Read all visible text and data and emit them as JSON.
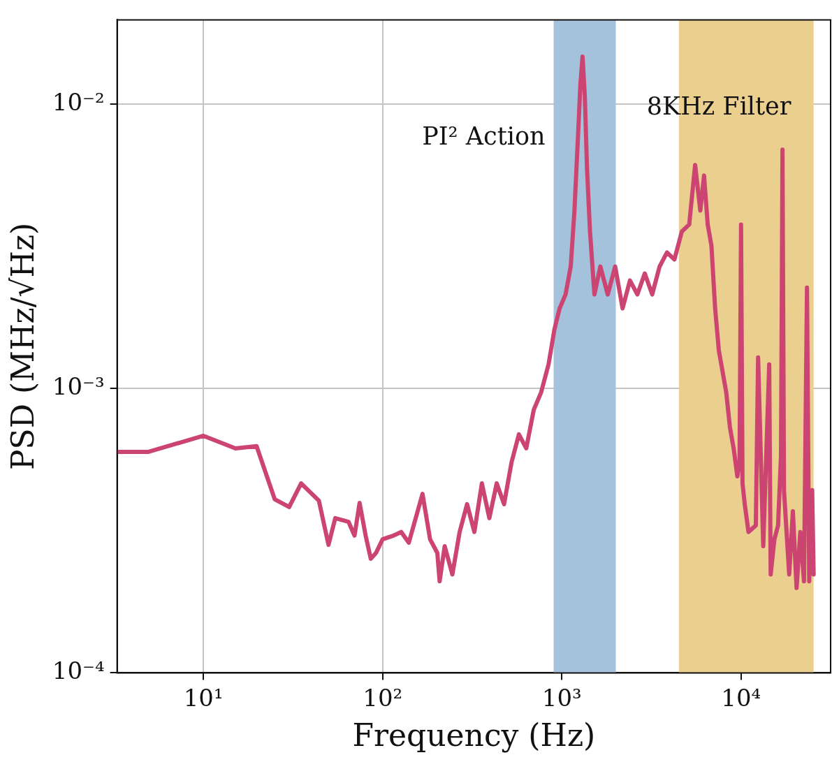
{
  "chart_data": {
    "type": "line",
    "xlabel": "Frequency (Hz)",
    "ylabel": "PSD (MHz/√Hz)",
    "log": "xy",
    "grid": true,
    "legend": false,
    "marker": "none",
    "line_style": "solid",
    "xlim": [
      3.3,
      31600
    ],
    "ylim": [
      0.0001,
      0.0198
    ],
    "xticks": [
      {
        "value": 10,
        "label": "10¹"
      },
      {
        "value": 100,
        "label": "10²"
      },
      {
        "value": 1000,
        "label": "10³"
      },
      {
        "value": 10000,
        "label": "10⁴"
      }
    ],
    "yticks": [
      {
        "value": 0.0001,
        "label": "10⁻⁴"
      },
      {
        "value": 0.001,
        "label": "10⁻³"
      },
      {
        "value": 0.01,
        "label": "10⁻²"
      }
    ],
    "bands": [
      {
        "axis": "x",
        "from": 900,
        "to": 2000,
        "label": "PI² Action",
        "color": "#a4c2dc"
      },
      {
        "axis": "x",
        "from": 4500,
        "to": 25400,
        "label": "8KHz Filter",
        "color": "#ebcf8e"
      }
    ],
    "series": [
      {
        "color": "#cc4472",
        "x": [
          3.3,
          4.94,
          10,
          15.1,
          19.8,
          25,
          30.1,
          35.1,
          44.1,
          49.9,
          54.4,
          64.5,
          69.7,
          74.4,
          80.4,
          85.9,
          91.8,
          100,
          115,
          127,
          140,
          167,
          184,
          202,
          208,
          222,
          245,
          269,
          296,
          325,
          358,
          394,
          433,
          476,
          524,
          576,
          633,
          697,
          766,
          843,
          909,
          972,
          1049,
          1121,
          1176,
          1233,
          1269,
          1305,
          1343,
          1382,
          1436,
          1520,
          1640,
          1804,
          1984,
          2182,
          2400,
          2640,
          2903,
          3193,
          3512,
          3862,
          4248,
          4672,
          5138,
          5543,
          5925,
          6215,
          6516,
          6834,
          7168,
          7516,
          7883,
          8268,
          8670,
          9093,
          9535,
          9810,
          10000,
          10190,
          10488,
          11000,
          12090,
          12450,
          13300,
          14360,
          14630,
          15350,
          16090,
          16710,
          17030,
          17360,
          18560,
          19460,
          20410,
          21410,
          22450,
          23330,
          24000,
          24940,
          25410
        ],
        "values": [
          0.000599,
          0.000599,
          0.000682,
          0.000616,
          0.000627,
          0.000408,
          0.000383,
          0.000464,
          0.000403,
          0.000282,
          0.00035,
          0.00034,
          0.000304,
          0.000396,
          0.000304,
          0.000252,
          0.000264,
          0.000295,
          0.000304,
          0.000313,
          0.000287,
          0.000426,
          0.000295,
          0.000264,
          0.00021,
          0.000279,
          0.000222,
          0.000313,
          0.000392,
          0.000313,
          0.000464,
          0.00035,
          0.000464,
          0.000392,
          0.00055,
          0.00069,
          0.000616,
          0.000841,
          0.000969,
          0.001216,
          0.001614,
          0.001913,
          0.002142,
          0.002686,
          0.004227,
          0.00788,
          0.01172,
          0.0147,
          0.01072,
          0.00594,
          0.003566,
          0.002142,
          0.002686,
          0.002142,
          0.002686,
          0.001913,
          0.002399,
          0.002142,
          0.00254,
          0.002142,
          0.002686,
          0.00301,
          0.002843,
          0.003566,
          0.003775,
          0.00611,
          0.004227,
          0.00561,
          0.003775,
          0.003185,
          0.001913,
          0.001362,
          0.001149,
          0.000969,
          0.00073,
          0.000616,
          0.000491,
          0.00055,
          0.003775,
          0.000464,
          0.000392,
          0.000313,
          0.00033,
          0.001287,
          0.000279,
          0.001216,
          0.000222,
          0.000295,
          0.00033,
          0.000582,
          0.00692,
          0.000439,
          0.000222,
          0.00037,
          0.000199,
          0.000313,
          0.00021,
          0.002266,
          0.00021,
          0.000439,
          0.000222
        ]
      }
    ]
  }
}
